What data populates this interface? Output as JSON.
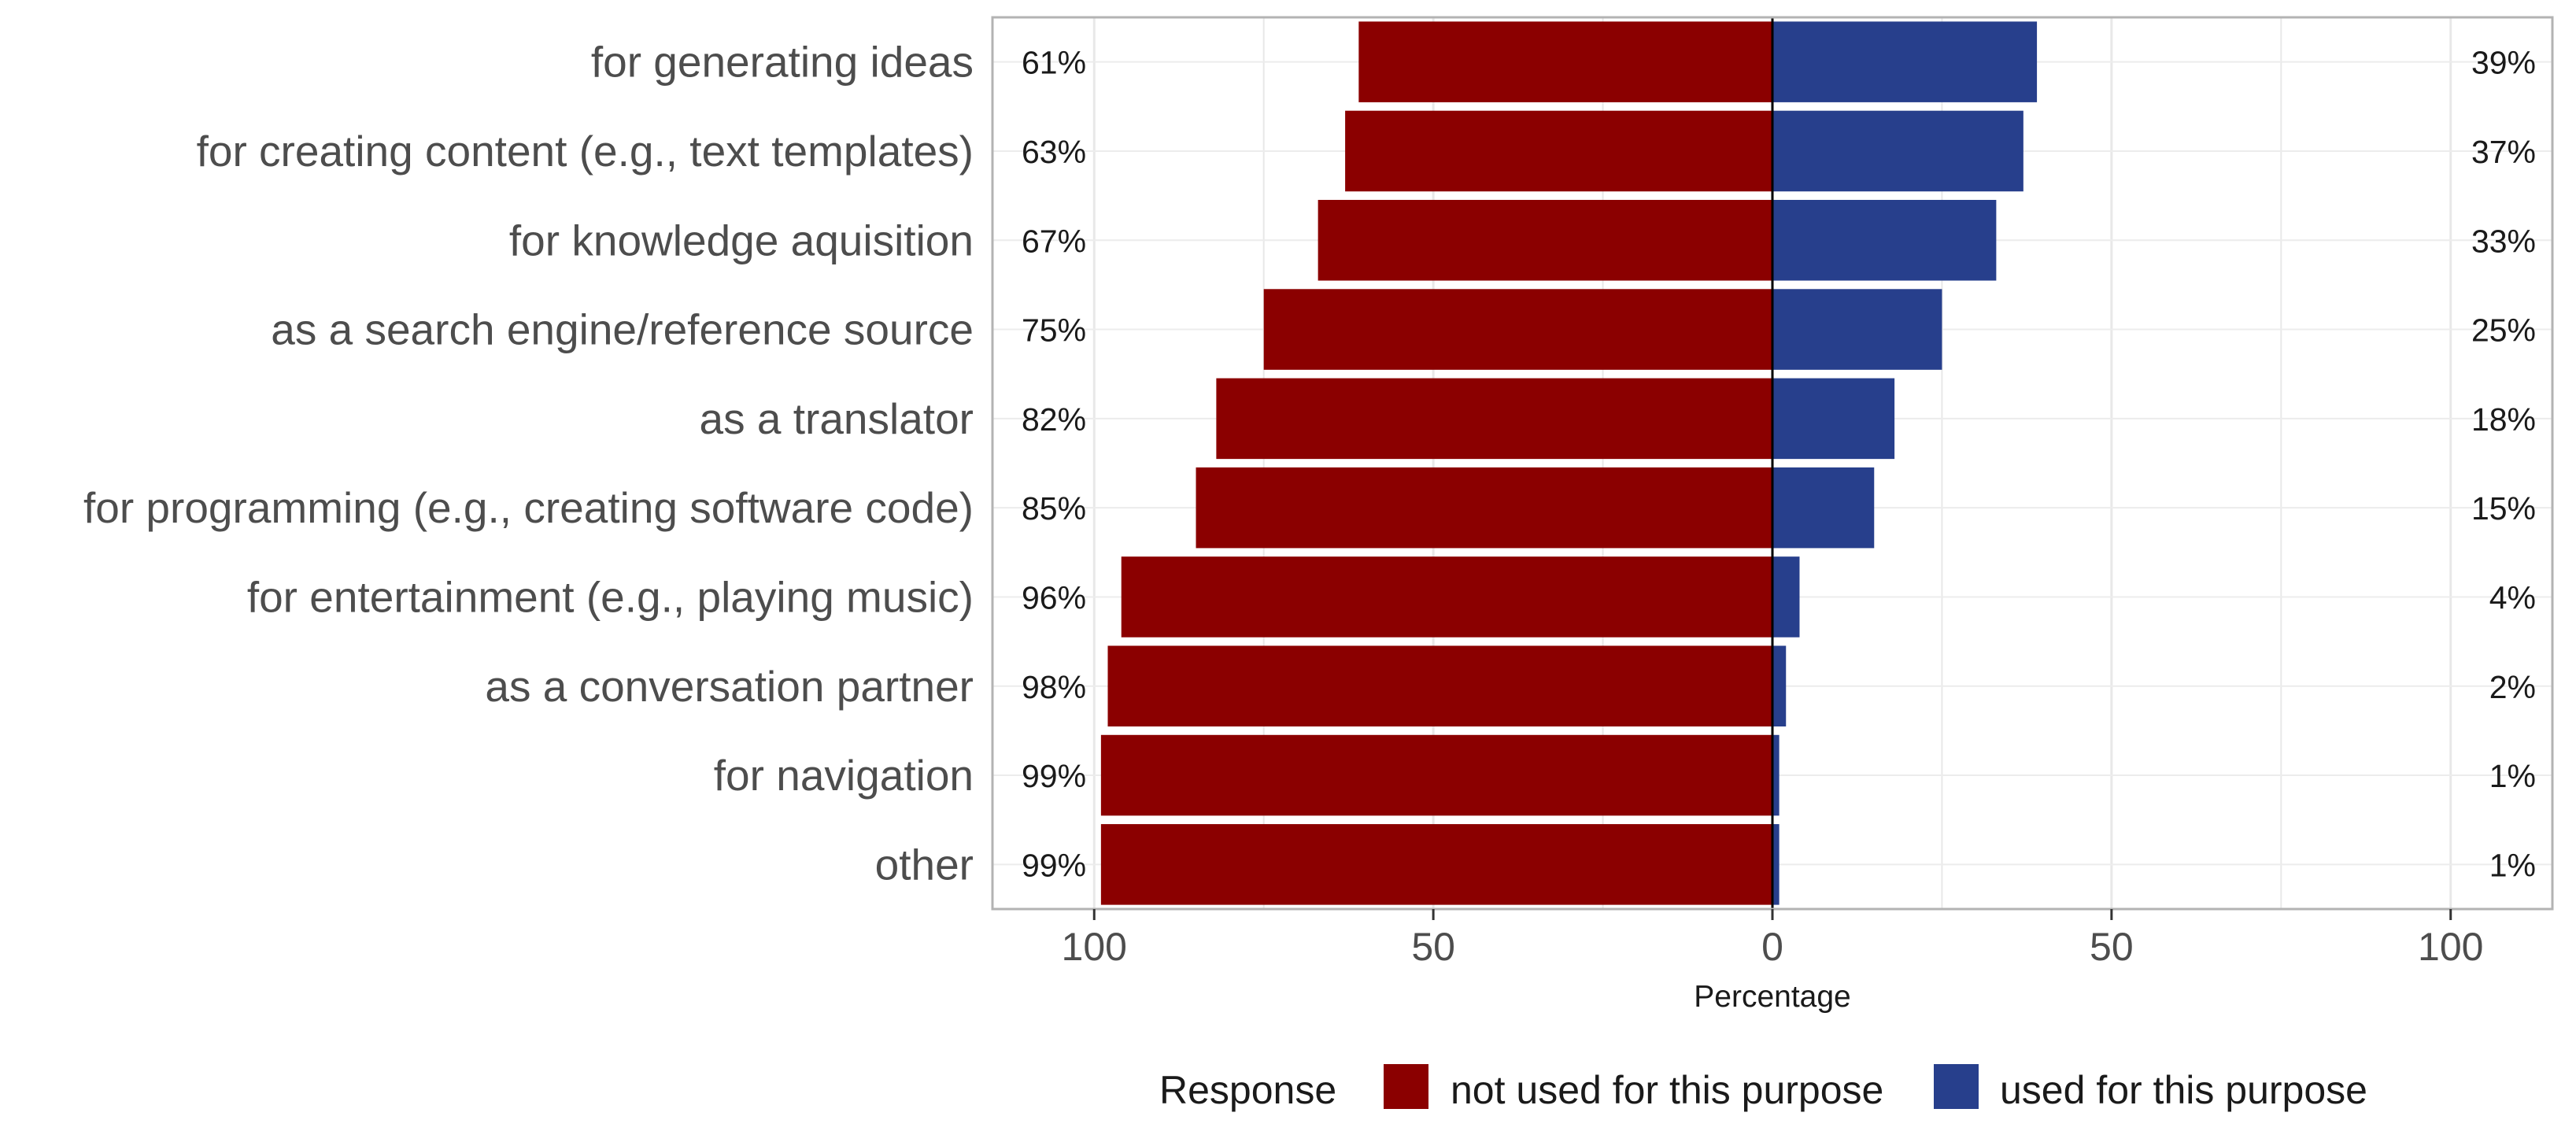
{
  "chart_data": {
    "type": "bar",
    "orientation": "horizontal-diverging",
    "categories": [
      "for generating ideas",
      "for creating content (e.g., text templates)",
      "for knowledge aquisition",
      "as a search engine/reference source",
      "as a translator",
      "for programming (e.g., creating software code)",
      "for entertainment (e.g., playing music)",
      "as a conversation partner",
      "for navigation",
      "other"
    ],
    "series": [
      {
        "name": "not used for this purpose",
        "color": "#8b0000",
        "values": [
          61,
          63,
          67,
          75,
          82,
          85,
          96,
          98,
          99,
          99
        ],
        "labels": [
          "61%",
          "63%",
          "67%",
          "75%",
          "82%",
          "85%",
          "96%",
          "98%",
          "99%",
          "99%"
        ]
      },
      {
        "name": "used for this purpose",
        "color": "#273f8c",
        "values": [
          39,
          37,
          33,
          25,
          18,
          15,
          4,
          2,
          1,
          1
        ],
        "labels": [
          "39%",
          "37%",
          "33%",
          "25%",
          "18%",
          "15%",
          "4%",
          "2%",
          "1%",
          "1%"
        ]
      }
    ],
    "xlabel": "Percentage",
    "xlim": [
      -115,
      115
    ],
    "x_ticks": [
      -100,
      -50,
      0,
      50,
      100
    ],
    "x_tick_labels": [
      "100",
      "50",
      "0",
      "50",
      "100"
    ],
    "grid": true,
    "legend": {
      "title": "Response",
      "position": "bottom",
      "entries": [
        "not used for this purpose",
        "used for this purpose"
      ]
    }
  }
}
